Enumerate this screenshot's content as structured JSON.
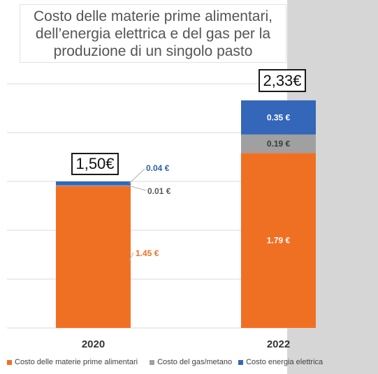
{
  "chart_data": {
    "type": "bar",
    "stacked": true,
    "title": "Costo delle materie prime alimentari,\ndell’energia elettrica e del gas per la\nproduzione di un singolo pasto",
    "categories": [
      "2020",
      "2022"
    ],
    "totals": [
      "1,50€",
      "2,33€"
    ],
    "series": [
      {
        "name": "Costo delle materie prime alimentari",
        "color": "#f07023",
        "values": [
          1.45,
          1.79
        ],
        "labels": [
          "1.45 €",
          "1.79 €"
        ],
        "label_color": "#f07023"
      },
      {
        "name": "Costo del gas/metano",
        "color": "#a0a0a0",
        "values": [
          0.01,
          0.19
        ],
        "labels": [
          "0.01 €",
          "0.19 €"
        ],
        "label_color": "#5a5a5a"
      },
      {
        "name": "Costo energia elettrica",
        "color": "#3466b9",
        "values": [
          0.04,
          0.35
        ],
        "labels": [
          "0.04 €",
          "0.35 €"
        ],
        "label_color": "#2f5fae"
      }
    ],
    "ylim": [
      0,
      2.5
    ],
    "grid": true,
    "legend_position": "bottom"
  }
}
